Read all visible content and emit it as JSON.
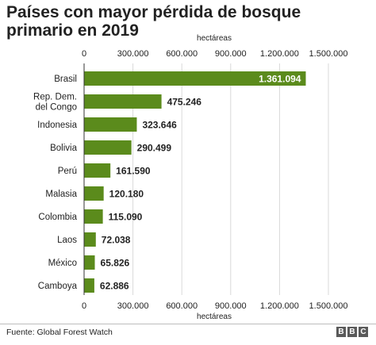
{
  "chart_data": {
    "type": "bar",
    "orientation": "horizontal",
    "title": "Países con mayor pérdida de bosque primario en 2019",
    "axis_label_top": "hectáreas",
    "axis_label_bottom": "hectáreas",
    "categories": [
      "Brasil",
      "Rep. Dem. del Congo",
      "Indonesia",
      "Bolivia",
      "Perú",
      "Malasia",
      "Colombia",
      "Laos",
      "México",
      "Camboya"
    ],
    "category_lines": [
      [
        "Brasil"
      ],
      [
        "Rep. Dem.",
        "del Congo"
      ],
      [
        "Indonesia"
      ],
      [
        "Bolivia"
      ],
      [
        "Perú"
      ],
      [
        "Malasia"
      ],
      [
        "Colombia"
      ],
      [
        "Laos"
      ],
      [
        "México"
      ],
      [
        "Camboya"
      ]
    ],
    "values": [
      1361094,
      475246,
      323646,
      290499,
      161590,
      120180,
      115090,
      72038,
      65826,
      62886
    ],
    "value_labels": [
      "1.361.094",
      "475.246",
      "323.646",
      "290.499",
      "161.590",
      "120.180",
      "115.090",
      "72.038",
      "65.826",
      "62.886"
    ],
    "xlim": [
      0,
      1500000
    ],
    "ticks": [
      0,
      300000,
      600000,
      900000,
      1200000,
      1500000
    ],
    "tick_labels": [
      "0",
      "300.000",
      "600.000",
      "900.000",
      "1.200.000",
      "1.500.000"
    ],
    "grid": true,
    "colors": {
      "bar": "#5b8b1c",
      "grid": "#d9d9d9",
      "axis": "#333333",
      "text": "#222222",
      "inner_label": "#ffffff"
    }
  },
  "footer": {
    "source": "Fuente: Global Forest Watch",
    "logo": [
      "B",
      "B",
      "C"
    ]
  }
}
